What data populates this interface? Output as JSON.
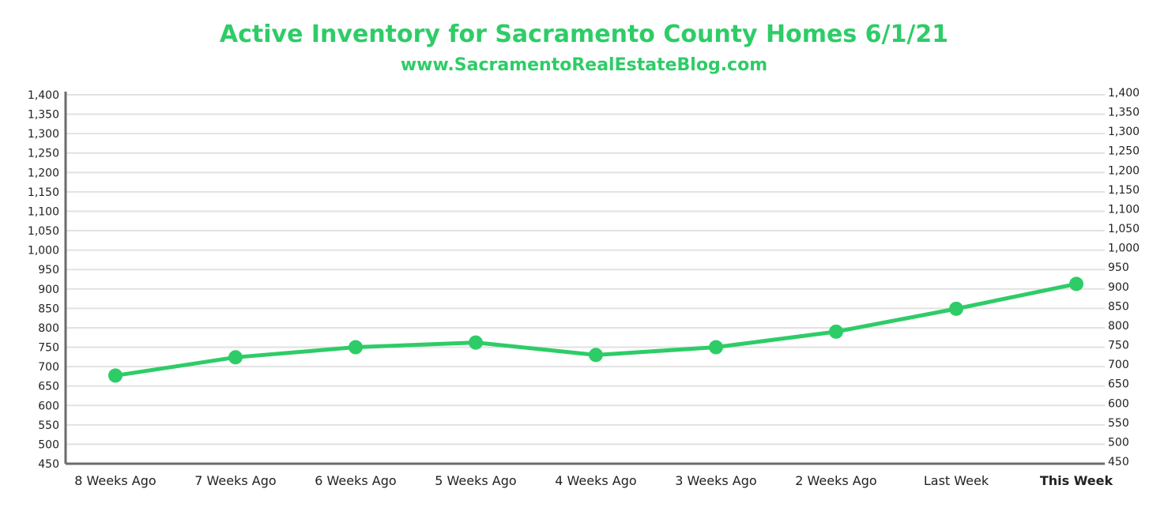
{
  "title": "Active Inventory for Sacramento County Homes 6/1/21",
  "subtitle": "www.SacramentoRealEstateBlog.com",
  "colors": {
    "accent": "#2ecc67",
    "axis": "#6b6b6b",
    "grid": "#e2e2e2",
    "text": "#222222"
  },
  "chart_data": {
    "type": "line",
    "title": "Active Inventory for Sacramento County Homes 6/1/21",
    "subtitle": "www.SacramentoRealEstateBlog.com",
    "xlabel": "",
    "ylabel": "",
    "categories": [
      "8 Weeks Ago",
      "7 Weeks Ago",
      "6 Weeks Ago",
      "5 Weeks Ago",
      "4 Weeks Ago",
      "3 Weeks Ago",
      "2 Weeks Ago",
      "Last Week",
      "This Week"
    ],
    "highlight_category": "This Week",
    "series": [
      {
        "values": [
          677,
          724,
          750,
          762,
          730,
          750,
          790,
          849,
          913
        ]
      }
    ],
    "ylim": [
      450,
      1400
    ],
    "yticks": [
      450,
      500,
      550,
      600,
      650,
      700,
      750,
      800,
      850,
      900,
      950,
      1000,
      1050,
      1100,
      1150,
      1200,
      1250,
      1300,
      1350,
      1400
    ],
    "ytick_labels": [
      "450",
      "500",
      "550",
      "600",
      "650",
      "700",
      "750",
      "800",
      "850",
      "900",
      "950",
      "1,000",
      "1,050",
      "1,100",
      "1,150",
      "1,200",
      "1,250",
      "1,300",
      "1,350",
      "1,400"
    ],
    "secondary_y_axis": true,
    "grid": true,
    "legend": "none"
  }
}
